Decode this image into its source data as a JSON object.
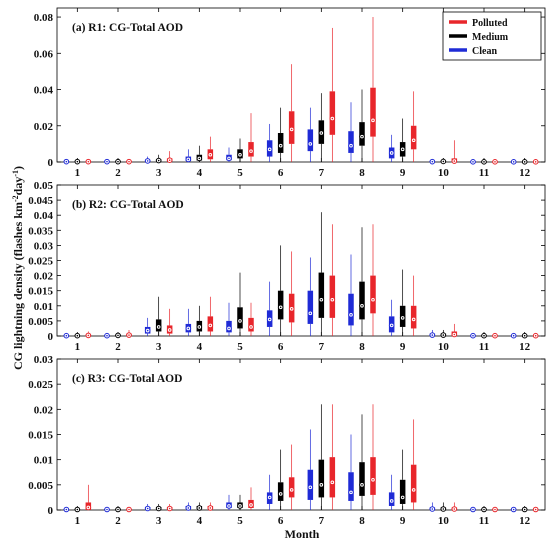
{
  "figure": {
    "ylabel_main": "CG lightning density (flashes km",
    "ylabel_sup1": "-2",
    "ylabel_mid": "day",
    "ylabel_sup2": "-1",
    "ylabel_end": ")",
    "xlabel": "Month"
  },
  "legend": {
    "items": [
      {
        "label": "Polluted",
        "color": "#e8262b"
      },
      {
        "label": "Medium",
        "color": "#000000"
      },
      {
        "label": "Clean",
        "color": "#1f2bd6"
      }
    ]
  },
  "chart_data": [
    {
      "type": "box",
      "title": "(a) R1: CG-Total AOD",
      "ylim": [
        0,
        0.085
      ],
      "yticks": [
        0,
        0.02,
        0.04,
        0.06,
        0.08
      ],
      "ytick_labels": [
        "0",
        "0.02",
        "0.04",
        "0.06",
        "0.08"
      ],
      "categories": [
        "1",
        "2",
        "3",
        "4",
        "5",
        "6",
        "7",
        "8",
        "9",
        "10",
        "11",
        "12"
      ],
      "series": [
        {
          "name": "Clean",
          "boxes": [
            [
              0,
              0,
              0.0002,
              0.0004,
              0.001
            ],
            [
              0,
              0,
              0.0002,
              0.0005,
              0.0012
            ],
            [
              0,
              0.0002,
              0.0006,
              0.0012,
              0.003
            ],
            [
              0,
              0.0006,
              0.0014,
              0.003,
              0.007
            ],
            [
              0,
              0.001,
              0.002,
              0.004,
              0.008
            ],
            [
              0,
              0.003,
              0.007,
              0.012,
              0.021
            ],
            [
              0,
              0.006,
              0.01,
              0.018,
              0.03
            ],
            [
              0,
              0.005,
              0.009,
              0.017,
              0.033
            ],
            [
              0,
              0.002,
              0.005,
              0.008,
              0.015
            ],
            [
              0,
              0,
              0.0002,
              0.0006,
              0.0015
            ],
            [
              0,
              0,
              0.0001,
              0.0002,
              0.0005
            ],
            [
              0,
              0,
              0.0001,
              0.0002,
              0.0005
            ]
          ]
        },
        {
          "name": "Medium",
          "boxes": [
            [
              0,
              0,
              0.0002,
              0.0004,
              0.001
            ],
            [
              0,
              0,
              0.0002,
              0.0005,
              0.0012
            ],
            [
              0,
              0.0003,
              0.0008,
              0.0015,
              0.004
            ],
            [
              0,
              0.0008,
              0.002,
              0.004,
              0.009
            ],
            [
              0,
              0.002,
              0.004,
              0.007,
              0.013
            ],
            [
              0,
              0.005,
              0.009,
              0.016,
              0.03
            ],
            [
              0,
              0.01,
              0.016,
              0.023,
              0.038
            ],
            [
              0,
              0.009,
              0.014,
              0.022,
              0.04
            ],
            [
              0,
              0.003,
              0.007,
              0.011,
              0.024
            ],
            [
              0,
              0,
              0.0003,
              0.0008,
              0.002
            ],
            [
              0,
              0,
              0.0001,
              0.0002,
              0.0005
            ],
            [
              0,
              0,
              0.0001,
              0.0002,
              0.0005
            ]
          ]
        },
        {
          "name": "Polluted",
          "boxes": [
            [
              0,
              0,
              0.0002,
              0.0005,
              0.0015
            ],
            [
              0,
              0,
              0.0002,
              0.0005,
              0.0012
            ],
            [
              0,
              0.0004,
              0.001,
              0.002,
              0.006
            ],
            [
              0,
              0.0015,
              0.004,
              0.007,
              0.014
            ],
            [
              0,
              0.003,
              0.006,
              0.011,
              0.027
            ],
            [
              0,
              0.01,
              0.018,
              0.028,
              0.054
            ],
            [
              0,
              0.015,
              0.024,
              0.039,
              0.074
            ],
            [
              0,
              0.014,
              0.023,
              0.041,
              0.08
            ],
            [
              0,
              0.007,
              0.012,
              0.02,
              0.039
            ],
            [
              0,
              0,
              0.0005,
              0.002,
              0.012
            ],
            [
              0,
              0,
              0.0001,
              0.0002,
              0.0005
            ],
            [
              0,
              0,
              0.0001,
              0.0002,
              0.0005
            ]
          ]
        }
      ]
    },
    {
      "type": "box",
      "title": "(b) R2: CG-Total AOD",
      "ylim": [
        0,
        0.05
      ],
      "yticks": [
        0,
        0.005,
        0.01,
        0.015,
        0.02,
        0.025,
        0.03,
        0.035,
        0.04,
        0.045,
        0.05
      ],
      "ytick_labels": [
        "0",
        "0.005",
        "0.01",
        "0.015",
        "0.02",
        "0.025",
        "0.03",
        "0.035",
        "0.04",
        "0.045",
        "0.05"
      ],
      "categories": [
        "1",
        "2",
        "3",
        "4",
        "5",
        "6",
        "7",
        "8",
        "9",
        "10",
        "11",
        "12"
      ],
      "series": [
        {
          "name": "Clean",
          "boxes": [
            [
              0,
              0,
              0.0001,
              0.0003,
              0.0008
            ],
            [
              0,
              0,
              0.0001,
              0.0003,
              0.0008
            ],
            [
              0,
              0.0008,
              0.0018,
              0.003,
              0.006
            ],
            [
              0,
              0.0012,
              0.0025,
              0.004,
              0.009
            ],
            [
              0,
              0.0012,
              0.0025,
              0.005,
              0.011
            ],
            [
              0,
              0.003,
              0.0055,
              0.0085,
              0.018
            ],
            [
              0,
              0.004,
              0.0075,
              0.015,
              0.026
            ],
            [
              0,
              0.0035,
              0.007,
              0.014,
              0.027
            ],
            [
              0,
              0.0012,
              0.0035,
              0.0065,
              0.012
            ],
            [
              0,
              0,
              0.0003,
              0.0008,
              0.002
            ],
            [
              0,
              0,
              0.0001,
              0.0002,
              0.0005
            ],
            [
              0,
              0,
              0.0001,
              0.0002,
              0.0005
            ]
          ]
        },
        {
          "name": "Medium",
          "boxes": [
            [
              0,
              0,
              0.0001,
              0.0003,
              0.0008
            ],
            [
              0,
              0,
              0.0002,
              0.0005,
              0.001
            ],
            [
              0,
              0.0015,
              0.003,
              0.0055,
              0.013
            ],
            [
              0,
              0.0015,
              0.003,
              0.005,
              0.01
            ],
            [
              0,
              0.0025,
              0.005,
              0.0095,
              0.021
            ],
            [
              0,
              0.0055,
              0.0095,
              0.015,
              0.03
            ],
            [
              0,
              0.006,
              0.012,
              0.021,
              0.041
            ],
            [
              0,
              0.0055,
              0.01,
              0.018,
              0.036
            ],
            [
              0,
              0.003,
              0.006,
              0.01,
              0.022
            ],
            [
              0,
              0,
              0.0003,
              0.0008,
              0.002
            ],
            [
              0,
              0,
              0.0001,
              0.0002,
              0.0005
            ],
            [
              0,
              0,
              0.0001,
              0.0002,
              0.0005
            ]
          ]
        },
        {
          "name": "Polluted",
          "boxes": [
            [
              0,
              0,
              0.0002,
              0.0005,
              0.0015
            ],
            [
              0,
              0,
              0.0003,
              0.0008,
              0.002
            ],
            [
              0,
              0.0008,
              0.002,
              0.0035,
              0.009
            ],
            [
              0,
              0.0015,
              0.0035,
              0.0065,
              0.013
            ],
            [
              0,
              0.0015,
              0.003,
              0.006,
              0.011
            ],
            [
              0,
              0.0045,
              0.009,
              0.014,
              0.028
            ],
            [
              0,
              0.006,
              0.012,
              0.02,
              0.037
            ],
            [
              0,
              0.0075,
              0.012,
              0.02,
              0.037
            ],
            [
              0,
              0.0025,
              0.0055,
              0.01,
              0.02
            ],
            [
              0,
              0,
              0.0005,
              0.0015,
              0.004
            ],
            [
              0,
              0,
              0.0001,
              0.0002,
              0.0005
            ],
            [
              0,
              0,
              0.0001,
              0.0002,
              0.0005
            ]
          ]
        }
      ]
    },
    {
      "type": "box",
      "title": "(c) R3: CG-Total AOD",
      "ylim": [
        0,
        0.03
      ],
      "yticks": [
        0,
        0.005,
        0.01,
        0.015,
        0.02,
        0.025,
        0.03
      ],
      "ytick_labels": [
        "0",
        "0.005",
        "0.01",
        "0.015",
        "0.02",
        "0.025",
        "0.03"
      ],
      "categories": [
        "1",
        "2",
        "3",
        "4",
        "5",
        "6",
        "7",
        "8",
        "9",
        "10",
        "11",
        "12"
      ],
      "series": [
        {
          "name": "Clean",
          "boxes": [
            [
              0,
              0,
              0.0001,
              0.0002,
              0.0006
            ],
            [
              0,
              0,
              0.0001,
              0.0002,
              0.0006
            ],
            [
              0,
              0.0001,
              0.0003,
              0.0006,
              0.0012
            ],
            [
              0,
              0.0002,
              0.0004,
              0.0008,
              0.0015
            ],
            [
              0,
              0.0004,
              0.0008,
              0.0015,
              0.003
            ],
            [
              0,
              0.0012,
              0.0025,
              0.0035,
              0.007
            ],
            [
              0,
              0.002,
              0.0045,
              0.008,
              0.016
            ],
            [
              0,
              0.0018,
              0.0035,
              0.0075,
              0.015
            ],
            [
              0,
              0.0008,
              0.0018,
              0.0035,
              0.007
            ],
            [
              0,
              0,
              0.0002,
              0.0005,
              0.0015
            ],
            [
              0,
              0,
              0.0001,
              0.0002,
              0.0005
            ],
            [
              0,
              0,
              0.0001,
              0.0002,
              0.0005
            ]
          ]
        },
        {
          "name": "Medium",
          "boxes": [
            [
              0,
              0,
              0.0001,
              0.0002,
              0.0006
            ],
            [
              0,
              0,
              0.0001,
              0.0002,
              0.0006
            ],
            [
              0,
              0.0001,
              0.0003,
              0.0006,
              0.0012
            ],
            [
              0,
              0.0002,
              0.0004,
              0.0008,
              0.0015
            ],
            [
              0,
              0.0004,
              0.0008,
              0.0015,
              0.003
            ],
            [
              0,
              0.0018,
              0.0032,
              0.0055,
              0.012
            ],
            [
              0,
              0.0025,
              0.005,
              0.01,
              0.021
            ],
            [
              0,
              0.0028,
              0.005,
              0.0095,
              0.019
            ],
            [
              0,
              0.0012,
              0.0025,
              0.006,
              0.012
            ],
            [
              0,
              0,
              0.0002,
              0.0005,
              0.0015
            ],
            [
              0,
              0,
              0.0001,
              0.0002,
              0.0005
            ],
            [
              0,
              0,
              0.0001,
              0.0002,
              0.0005
            ]
          ]
        },
        {
          "name": "Polluted",
          "boxes": [
            [
              0,
              0,
              0.0005,
              0.0015,
              0.005
            ],
            [
              0,
              0,
              0.0001,
              0.0002,
              0.0006
            ],
            [
              0,
              0.0001,
              0.0003,
              0.0006,
              0.0012
            ],
            [
              0,
              0.0002,
              0.0004,
              0.0008,
              0.0015
            ],
            [
              0,
              0.0004,
              0.001,
              0.002,
              0.0045
            ],
            [
              0,
              0.0025,
              0.004,
              0.0065,
              0.013
            ],
            [
              0,
              0.0025,
              0.0055,
              0.0105,
              0.021
            ],
            [
              0,
              0.003,
              0.006,
              0.0105,
              0.021
            ],
            [
              0,
              0.0015,
              0.004,
              0.009,
              0.018
            ],
            [
              0,
              0,
              0.0002,
              0.0005,
              0.0015
            ],
            [
              0,
              0,
              0.0001,
              0.0002,
              0.0005
            ],
            [
              0,
              0,
              0.0001,
              0.0002,
              0.0005
            ]
          ]
        }
      ]
    }
  ]
}
